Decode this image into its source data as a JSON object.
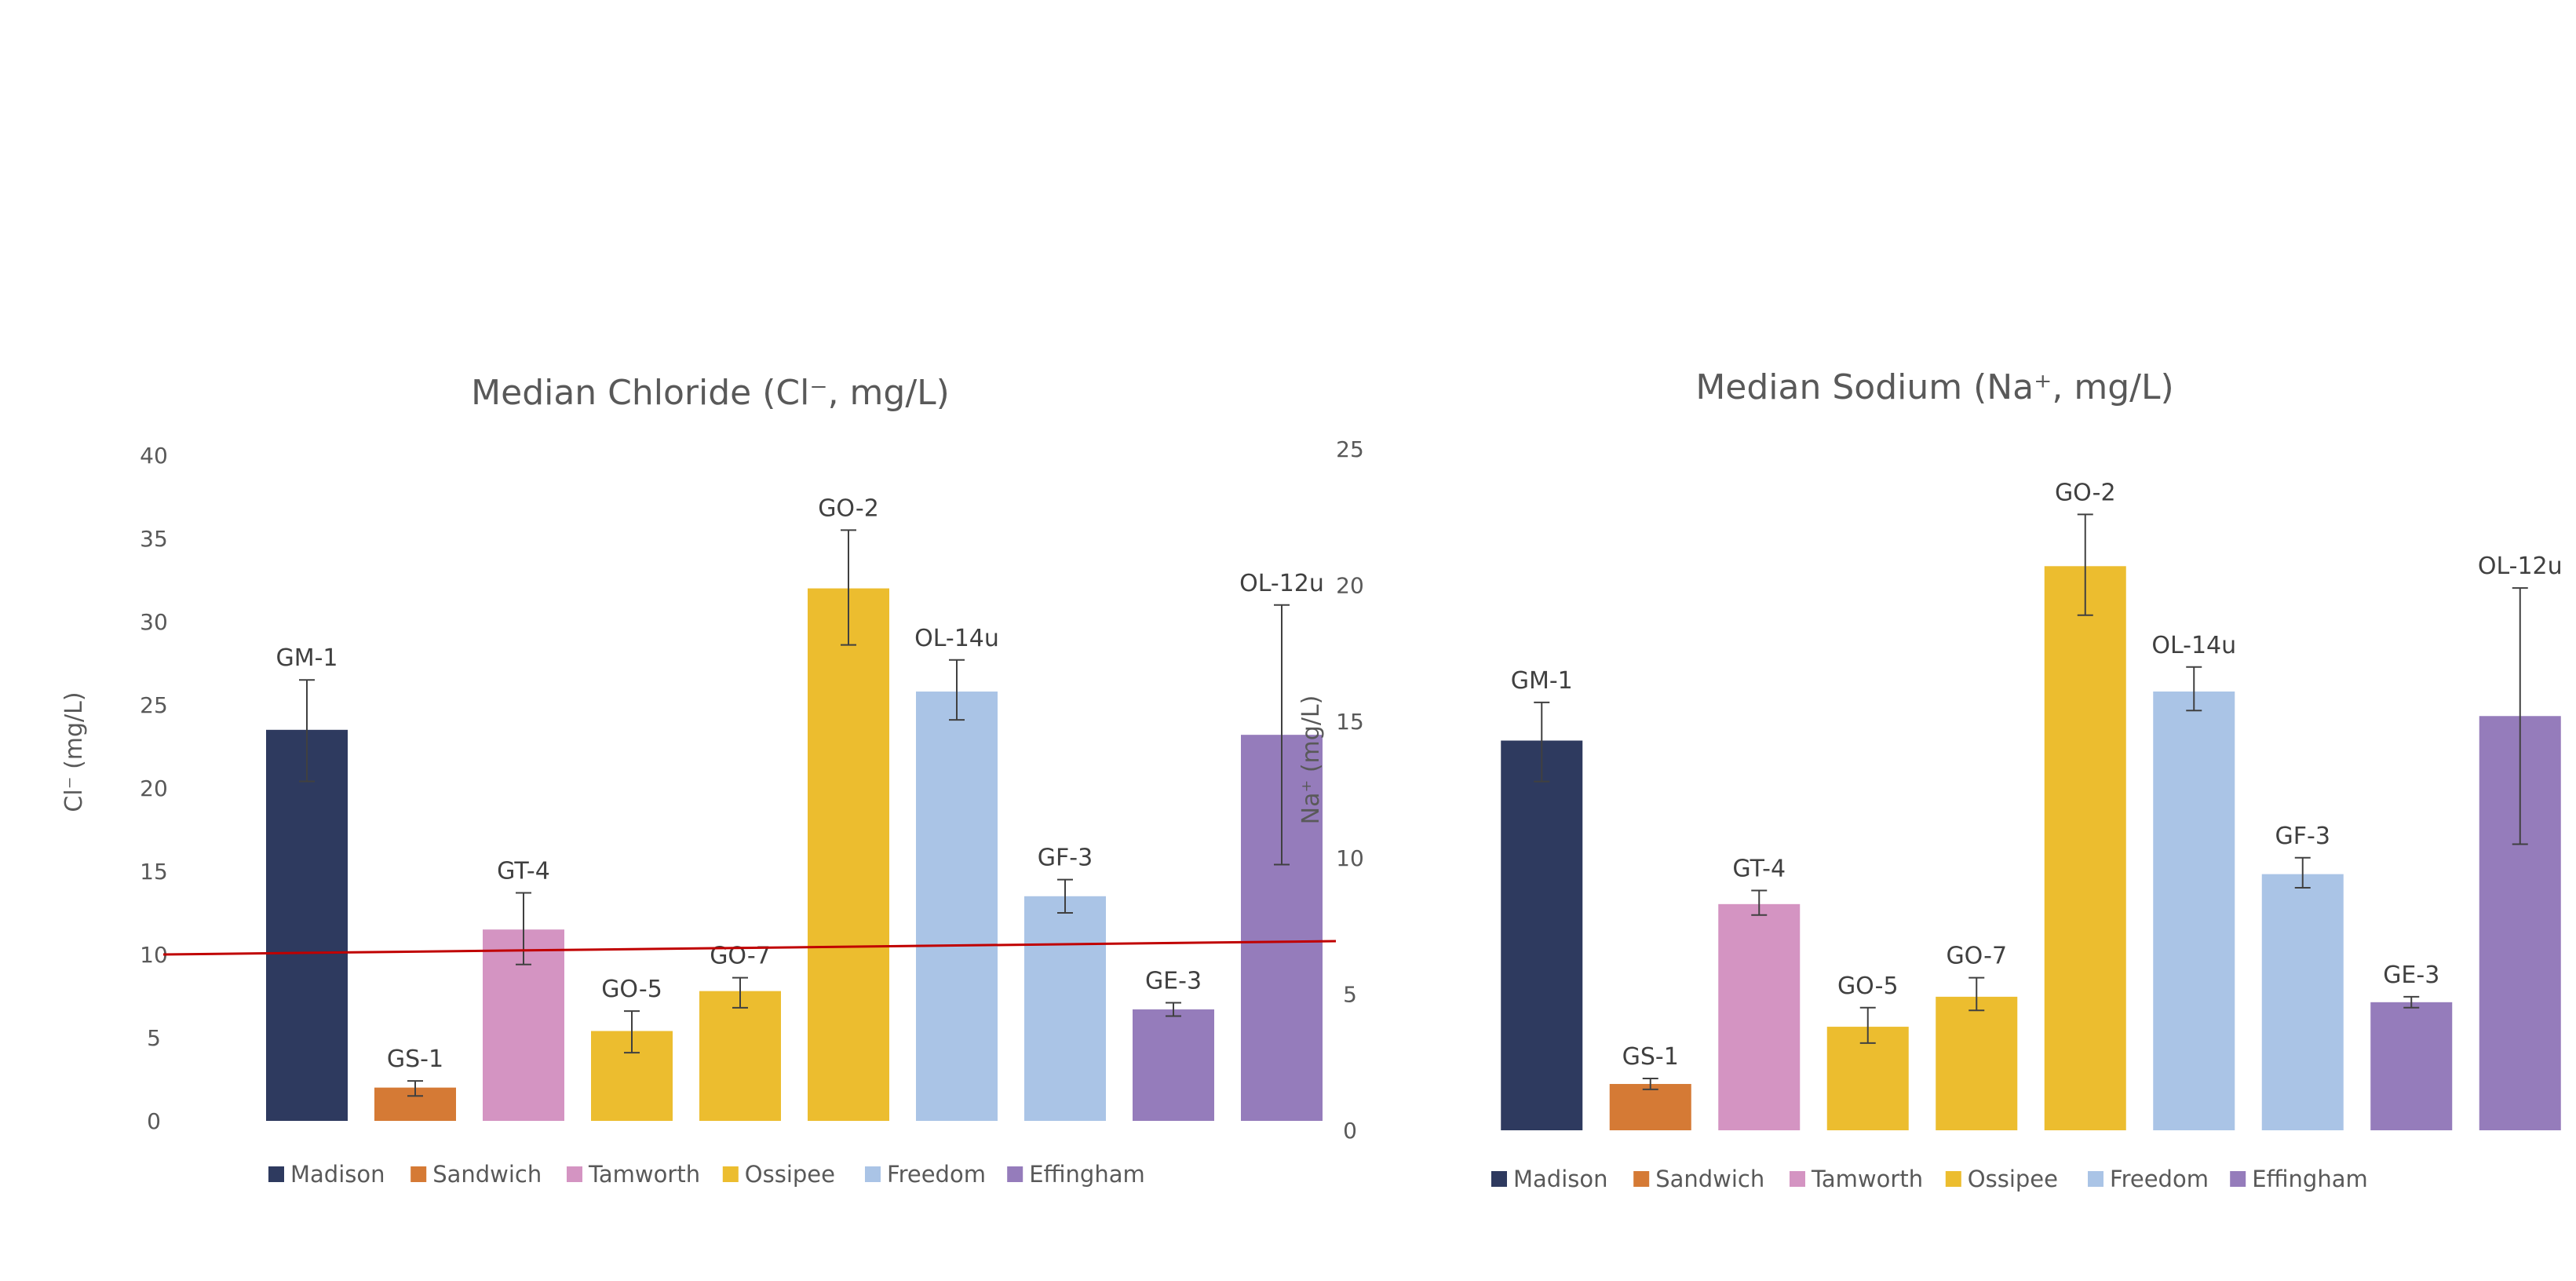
{
  "colors": {
    "madison": "#2e3a5f",
    "sandwich": "#d57a35",
    "tamworth": "#d494c2",
    "ossipee": "#ecbd2f",
    "freedom": "#aac4e6",
    "effingham": "#957cbb",
    "threshold_line": "#c00000",
    "text": "#595959"
  },
  "legend": [
    {
      "label": "Madison",
      "color_key": "madison"
    },
    {
      "label": "Sandwich",
      "color_key": "sandwich"
    },
    {
      "label": "Tamworth",
      "color_key": "tamworth"
    },
    {
      "label": "Ossipee",
      "color_key": "ossipee"
    },
    {
      "label": "Freedom",
      "color_key": "freedom"
    },
    {
      "label": "Effingham",
      "color_key": "effingham"
    }
  ],
  "chart_data": [
    {
      "type": "bar",
      "title": "Median Chloride (Cl⁻, mg/L)",
      "ylabel": "Cl⁻ (mg/L)",
      "ylim": [
        0,
        40
      ],
      "yticks": [
        0,
        5,
        10,
        15,
        20,
        25,
        30,
        35,
        40
      ],
      "grid": false,
      "legend_position": "bottom",
      "reference_line": {
        "y_start": 10,
        "y_end": 10.8
      },
      "categories": [
        "GM-1",
        "GS-1",
        "GT-4",
        "GO-5",
        "GO-7",
        "GO-2",
        "OL-14u",
        "GF-3",
        "GE-3",
        "OL-12u"
      ],
      "towns": [
        "madison",
        "sandwich",
        "tamworth",
        "ossipee",
        "ossipee",
        "ossipee",
        "freedom",
        "freedom",
        "effingham",
        "effingham"
      ],
      "values": [
        23.5,
        2.0,
        11.5,
        5.4,
        7.8,
        32.0,
        25.8,
        13.5,
        6.7,
        23.2
      ],
      "error_low": [
        20.4,
        1.5,
        9.4,
        4.1,
        6.8,
        28.6,
        24.1,
        12.5,
        6.3,
        15.4
      ],
      "error_high": [
        26.5,
        2.4,
        13.7,
        6.6,
        8.6,
        35.5,
        27.7,
        14.5,
        7.1,
        31.0
      ]
    },
    {
      "type": "bar",
      "title": "Median Sodium (Na⁺, mg/L)",
      "ylabel": "Na⁺ (mg/L)",
      "ylim": [
        0,
        25
      ],
      "yticks": [
        0,
        5,
        10,
        15,
        20,
        25
      ],
      "grid": false,
      "legend_position": "bottom",
      "categories": [
        "GM-1",
        "GS-1",
        "GT-4",
        "GO-5",
        "GO-7",
        "GO-2",
        "OL-14u",
        "GF-3",
        "GE-3",
        "OL-12u"
      ],
      "towns": [
        "madison",
        "sandwich",
        "tamworth",
        "ossipee",
        "ossipee",
        "ossipee",
        "freedom",
        "freedom",
        "effingham",
        "effingham"
      ],
      "values": [
        14.3,
        1.7,
        8.3,
        3.8,
        4.9,
        20.7,
        16.1,
        9.4,
        4.7,
        15.2
      ],
      "error_low": [
        12.8,
        1.5,
        7.9,
        3.2,
        4.4,
        18.9,
        15.4,
        8.9,
        4.5,
        10.5
      ],
      "error_high": [
        15.7,
        1.9,
        8.8,
        4.5,
        5.6,
        22.6,
        17.0,
        10.0,
        4.9,
        19.9
      ]
    }
  ]
}
